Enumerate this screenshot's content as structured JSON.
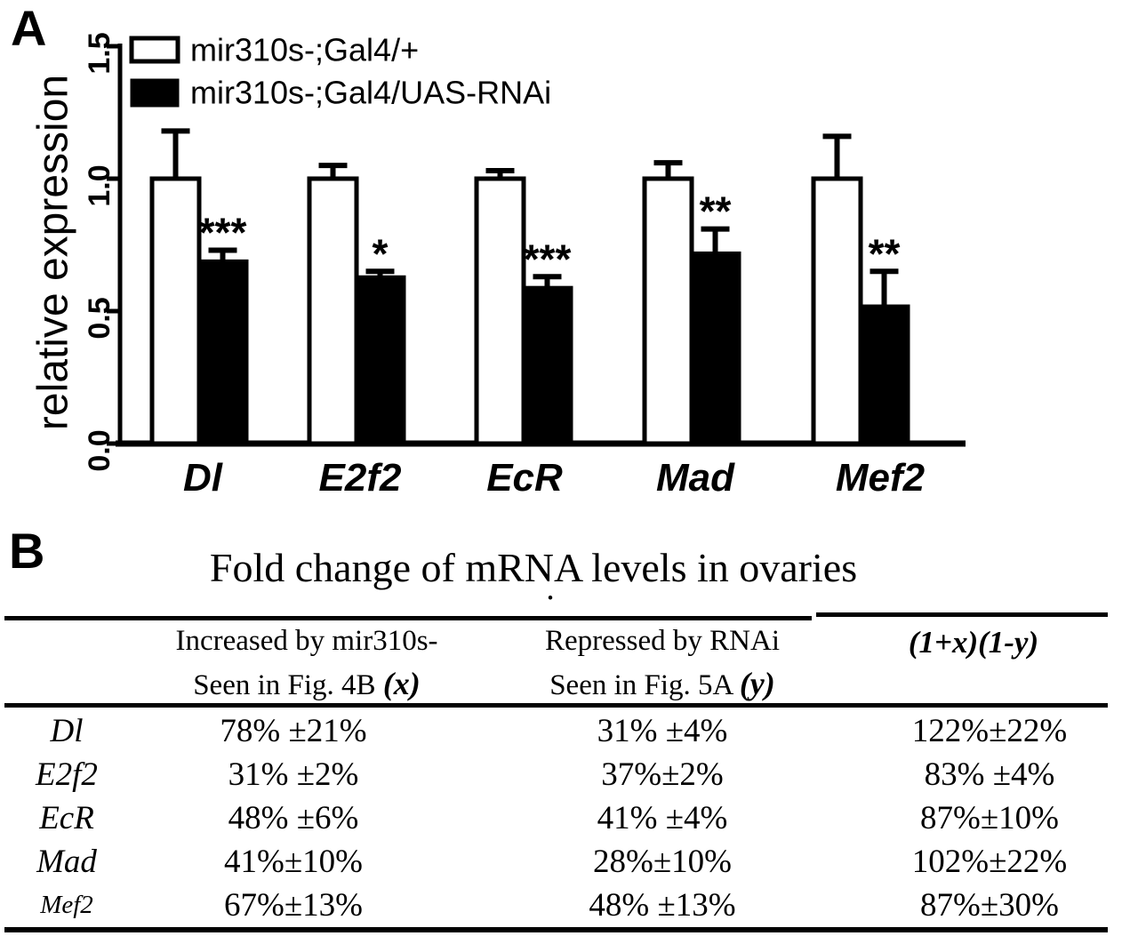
{
  "panel_a": {
    "label": "A",
    "y_axis_title": "relative expression",
    "legend": [
      {
        "label": "mir310s-;Gal4/+",
        "fill": "#ffffff"
      },
      {
        "label": "mir310s-;Gal4/UAS-RNAi",
        "fill": "#000000"
      }
    ]
  },
  "chart_data": {
    "type": "bar",
    "categories": [
      "Dl",
      "E2f2",
      "EcR",
      "Mad",
      "Mef2"
    ],
    "series": [
      {
        "name": "mir310s-;Gal4/+",
        "fill": "#ffffff",
        "values": [
          1.0,
          1.0,
          1.0,
          1.0,
          1.0
        ],
        "errors": [
          0.18,
          0.05,
          0.03,
          0.06,
          0.16
        ]
      },
      {
        "name": "mir310s-;Gal4/UAS-RNAi",
        "fill": "#000000",
        "values": [
          0.69,
          0.63,
          0.59,
          0.72,
          0.52
        ],
        "errors": [
          0.04,
          0.02,
          0.04,
          0.09,
          0.13
        ]
      }
    ],
    "significance": [
      "***",
      "*",
      "***",
      "**",
      "**"
    ],
    "ylabel": "relative expression",
    "ylim": [
      0,
      1.5
    ],
    "yticks": [
      0.0,
      0.5,
      1.0,
      1.5
    ],
    "ytick_labels": [
      "0.0",
      "0.5",
      "1.0",
      "1.5"
    ],
    "grid": false,
    "legend_position": "top-left",
    "bar_colors": {
      "control": "#ffffff",
      "rnai": "#000000"
    }
  },
  "panel_b": {
    "label": "B",
    "title": "Fold change of mRNA levels in ovaries",
    "title_period": ".",
    "columns": [
      {
        "line1": "Increased by mir310s-",
        "line2": "Seen in Fig. 4B ",
        "var": "(x)"
      },
      {
        "line1": "Repressed by RNAi",
        "line2": "Seen in Fig. 5A ",
        "var": "(y)"
      },
      {
        "formula": "(1+x)(1-y)"
      }
    ],
    "rows": [
      {
        "gene": "Dl",
        "increased": "78% ±21%",
        "repressed": "31% ±4%",
        "product": "122%±22%"
      },
      {
        "gene": "E2f2",
        "increased": "31% ±2%",
        "repressed": "37%±2%",
        "product": "83% ±4%"
      },
      {
        "gene": "EcR",
        "increased": "48% ±6%",
        "repressed": "41% ±4%",
        "product": "87%±10%"
      },
      {
        "gene": "Mad",
        "increased": "41%±10%",
        "repressed": "28%±10%",
        "product": "102%±22%"
      },
      {
        "gene": "Mef2",
        "increased": "67%±13%",
        "repressed": "48% ±13%",
        "product": "87%±30%"
      }
    ]
  }
}
